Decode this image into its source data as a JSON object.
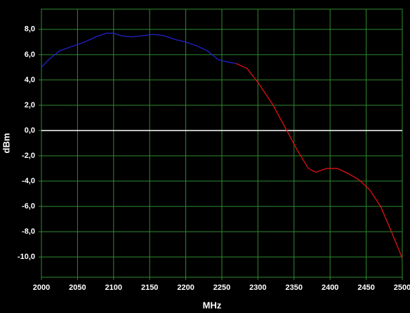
{
  "chart_data": {
    "type": "line",
    "x_label": "MHz",
    "y_label": "dBm",
    "x": [
      2000,
      2010,
      2025,
      2040,
      2060,
      2075,
      2090,
      2100,
      2110,
      2125,
      2140,
      2155,
      2170,
      2185,
      2200,
      2215,
      2230,
      2245,
      2260,
      2270,
      2285,
      2300,
      2320,
      2340,
      2355,
      2370,
      2380,
      2395,
      2410,
      2425,
      2440,
      2455,
      2470,
      2485,
      2500
    ],
    "series": [
      {
        "color": "#2222cc",
        "values": [
          5.0,
          5.6,
          6.3,
          6.6,
          7.0,
          7.4,
          7.7,
          7.7,
          7.5,
          7.4,
          7.5,
          7.6,
          7.5,
          7.2,
          7.0,
          6.7,
          6.3,
          5.6,
          5.4,
          5.3,
          null,
          null,
          null,
          null,
          null,
          null,
          null,
          null,
          null,
          null,
          null,
          null,
          null,
          null,
          null
        ]
      },
      {
        "color": "#e01010",
        "values": [
          null,
          null,
          null,
          null,
          null,
          null,
          null,
          null,
          null,
          null,
          null,
          null,
          null,
          null,
          null,
          null,
          null,
          null,
          null,
          5.3,
          4.9,
          3.8,
          2.1,
          0.0,
          -1.6,
          -3.0,
          -3.3,
          -3.0,
          -3.0,
          -3.4,
          -3.9,
          -4.7,
          -6.0,
          -8.0,
          -10.1
        ]
      }
    ],
    "xlim": [
      2000,
      2500
    ],
    "xticks": [
      2000,
      2050,
      2100,
      2150,
      2200,
      2250,
      2300,
      2350,
      2400,
      2450,
      2500
    ],
    "ylim": [
      -11.6,
      9.6
    ],
    "yticks": [
      {
        "value": -10,
        "label": "-10,0"
      },
      {
        "value": -8,
        "label": "-8,0"
      },
      {
        "value": -6,
        "label": "-6,0"
      },
      {
        "value": -4,
        "label": "-4,0"
      },
      {
        "value": -2,
        "label": "-2,0"
      },
      {
        "value": 0,
        "label": "0,0"
      },
      {
        "value": 2,
        "label": "2,0"
      },
      {
        "value": 4,
        "label": "4,0"
      },
      {
        "value": 6,
        "label": "6,0"
      },
      {
        "value": 8,
        "label": "8,0"
      }
    ],
    "grid": true,
    "grid_color": "#2f8a2f",
    "reference_line": {
      "value": 0,
      "color": "#ffffff"
    }
  }
}
